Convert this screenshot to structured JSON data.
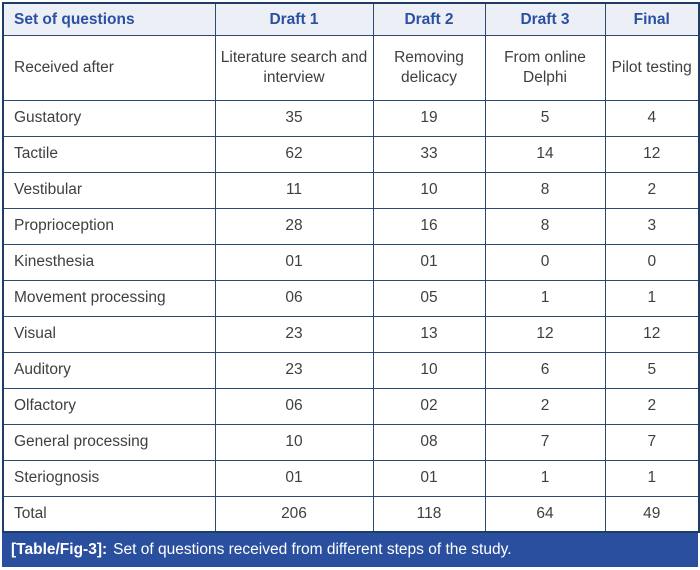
{
  "table": {
    "columns": [
      "Set of questions",
      "Draft 1",
      "Draft 2",
      "Draft 3",
      "Final"
    ],
    "subheader": {
      "label": "Received after",
      "values": [
        "Literature search and interview",
        "Removing delicacy",
        "From online Delphi",
        "Pilot testing"
      ]
    },
    "rows": [
      {
        "label": "Gustatory",
        "values": [
          "35",
          "19",
          "5",
          "4"
        ]
      },
      {
        "label": "Tactile",
        "values": [
          "62",
          "33",
          "14",
          "12"
        ]
      },
      {
        "label": "Vestibular",
        "values": [
          "11",
          "10",
          "8",
          "2"
        ]
      },
      {
        "label": "Proprioception",
        "values": [
          "28",
          "16",
          "8",
          "3"
        ]
      },
      {
        "label": "Kinesthesia",
        "values": [
          "01",
          "01",
          "0",
          "0"
        ]
      },
      {
        "label": "Movement processing",
        "values": [
          "06",
          "05",
          "1",
          "1"
        ]
      },
      {
        "label": "Visual",
        "values": [
          "23",
          "13",
          "12",
          "12"
        ]
      },
      {
        "label": "Auditory",
        "values": [
          "23",
          "10",
          "6",
          "5"
        ]
      },
      {
        "label": "Olfactory",
        "values": [
          "06",
          "02",
          "2",
          "2"
        ]
      },
      {
        "label": "General processing",
        "values": [
          "10",
          "08",
          "7",
          "7"
        ]
      },
      {
        "label": "Steriognosis",
        "values": [
          "01",
          "01",
          "1",
          "1"
        ]
      },
      {
        "label": "Total",
        "values": [
          "206",
          "118",
          "64",
          "49"
        ]
      }
    ]
  },
  "caption": {
    "tag": "[Table/Fig-3]:",
    "text": "Set of questions received from different steps of the study."
  },
  "colors": {
    "border": "#2c4a70",
    "outer_border": "#1d3d66",
    "header_bg": "#edeff7",
    "header_text": "#2b50a1",
    "body_text": "#3f3f3f",
    "caption_bg": "#2a4f9e",
    "caption_text": "#ffffff"
  }
}
